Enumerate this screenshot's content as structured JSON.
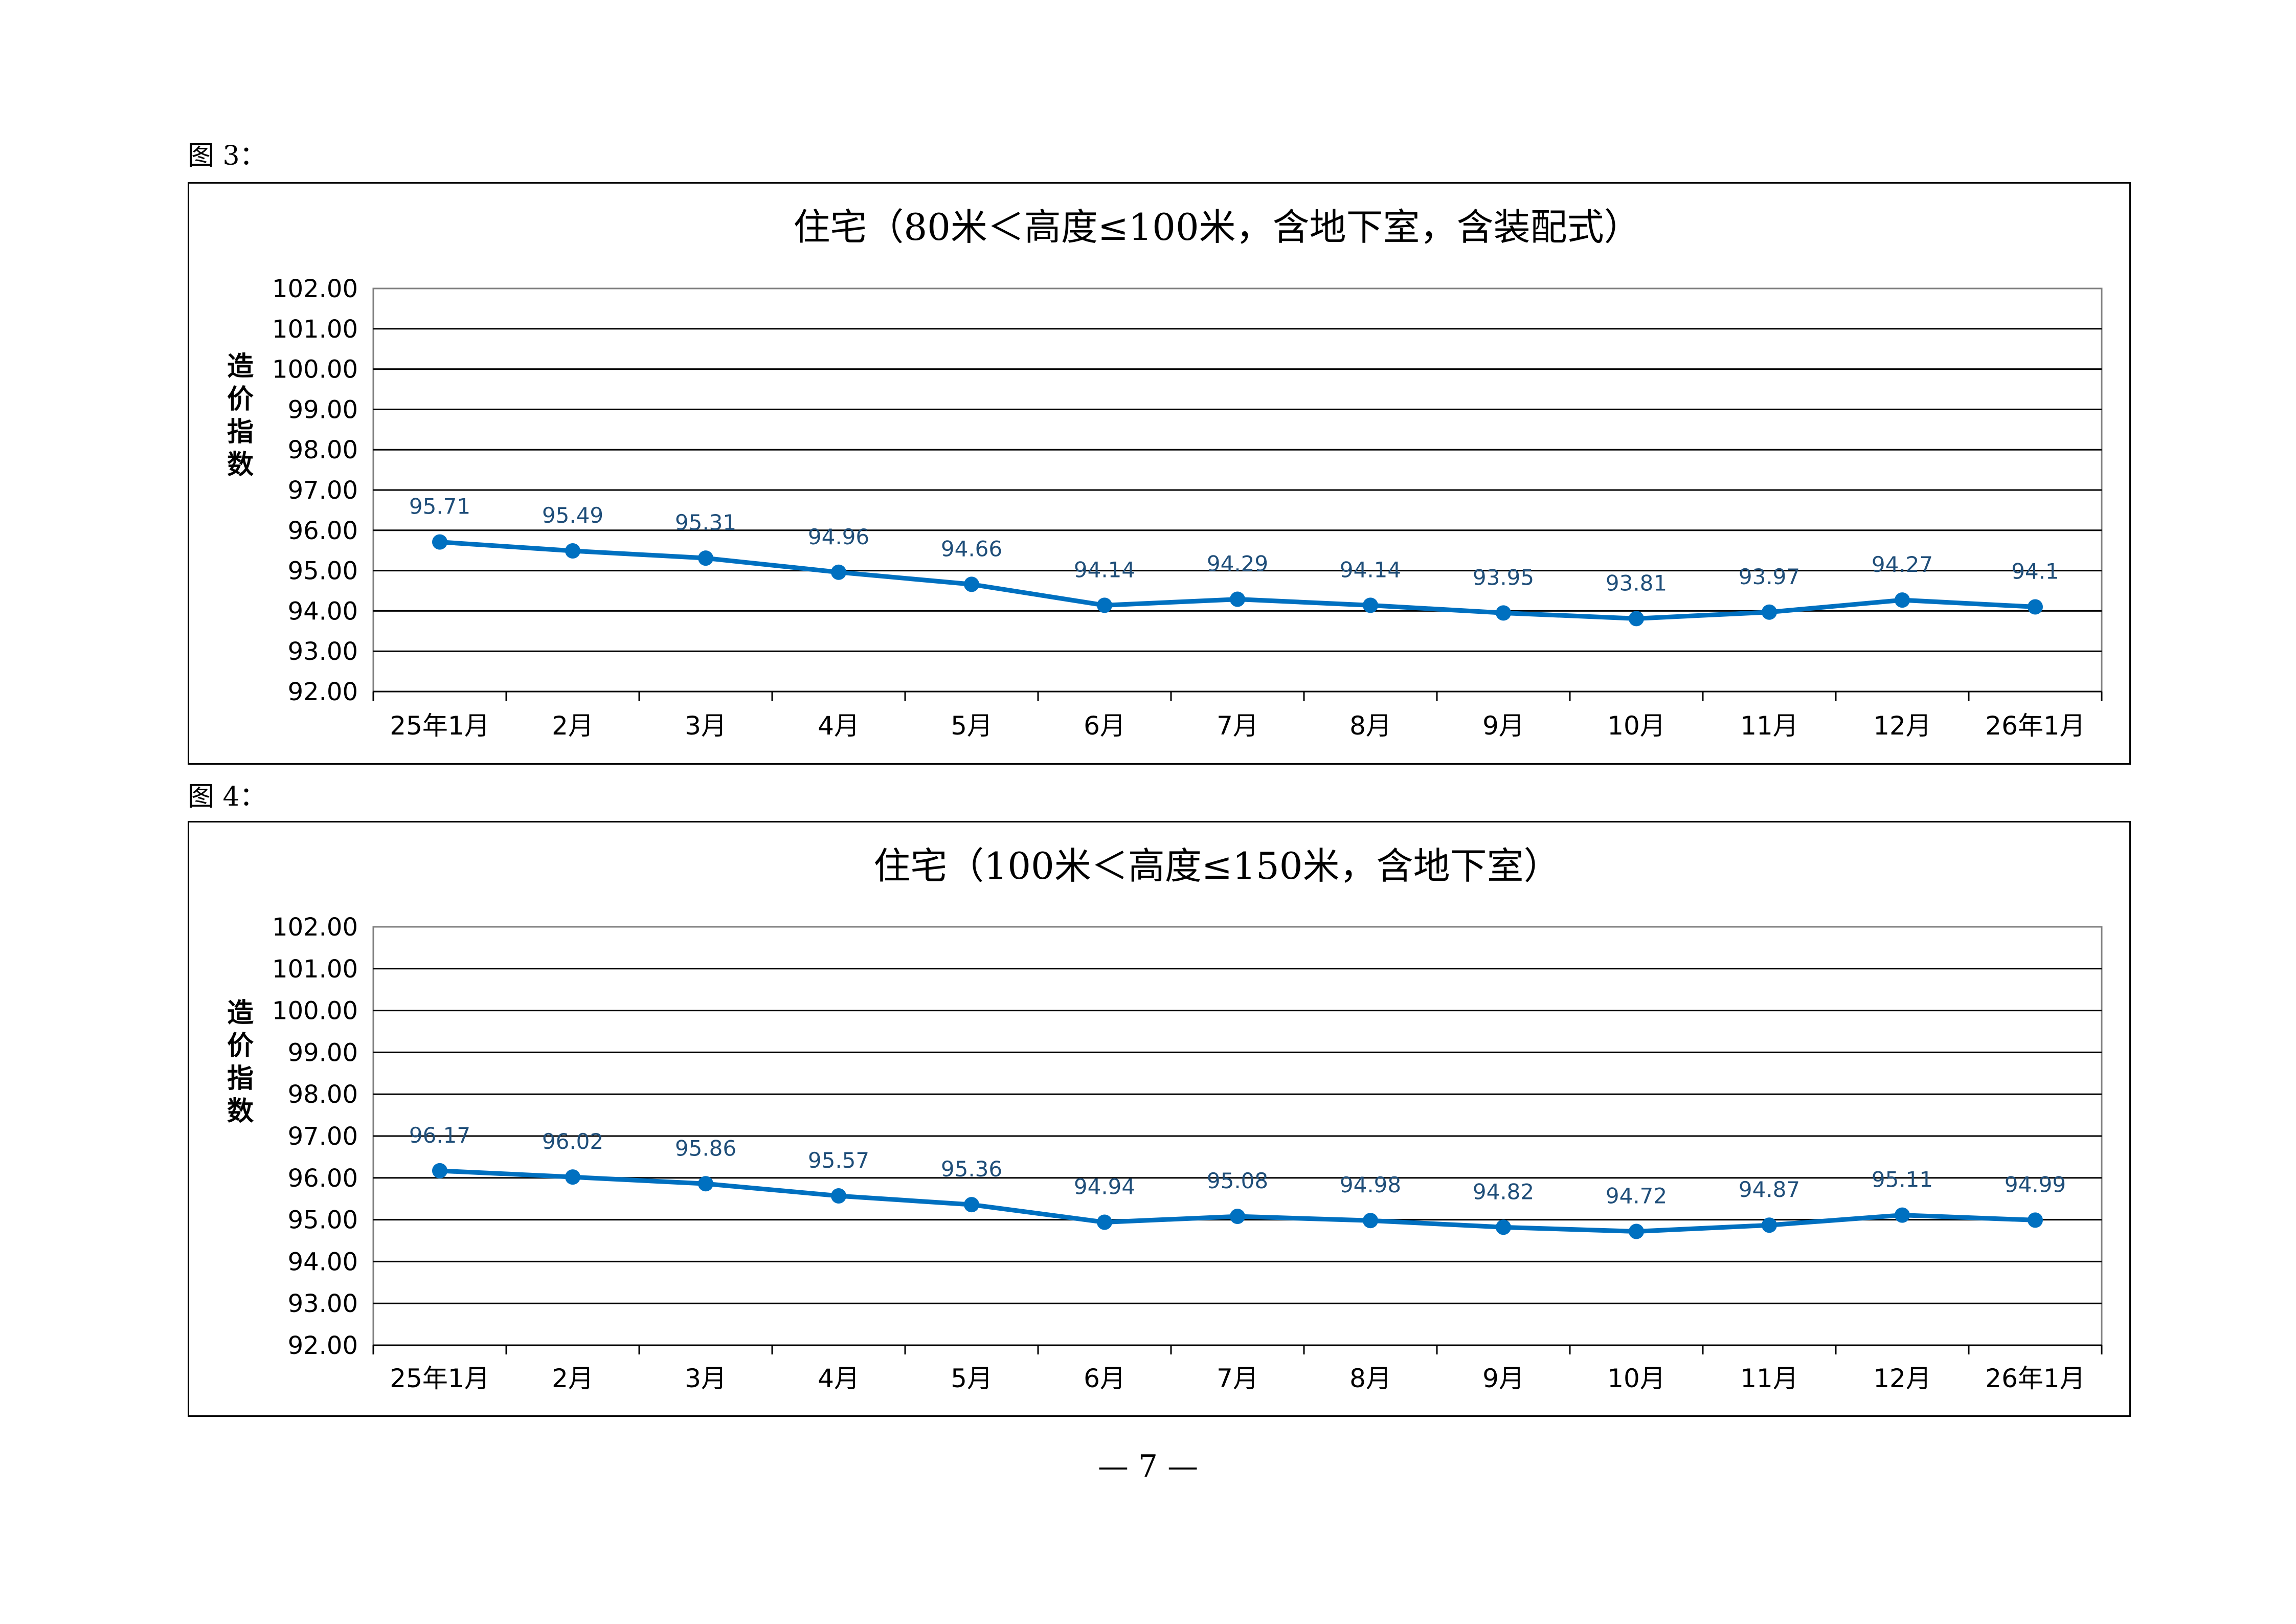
{
  "figures": [
    {
      "label": "图 3：",
      "chart_data": {
        "type": "line",
        "title": "住宅（80米＜高度≤100米，含地下室，含装配式）",
        "xlabel": "",
        "ylabel": "造价指数",
        "ylim": [
          92,
          102
        ],
        "yticks": [
          "92.00",
          "93.00",
          "94.00",
          "95.00",
          "96.00",
          "97.00",
          "98.00",
          "99.00",
          "100.00",
          "101.00",
          "102.00"
        ],
        "categories": [
          "25年1月",
          "2月",
          "3月",
          "4月",
          "5月",
          "6月",
          "7月",
          "8月",
          "9月",
          "10月",
          "11月",
          "12月",
          "26年1月"
        ],
        "values": [
          95.71,
          95.49,
          95.31,
          94.96,
          94.66,
          94.14,
          94.29,
          94.14,
          93.95,
          93.81,
          93.97,
          94.27,
          94.1
        ],
        "data_labels": [
          "95.71",
          "95.49",
          "95.31",
          "94.96",
          "94.66",
          "94.14",
          "94.29",
          "94.14",
          "93.95",
          "93.81",
          "93.97",
          "94.27",
          "94.1"
        ],
        "line_color": "#0070C0",
        "label_color": "#1F4E79",
        "grid": true,
        "legend": "none"
      }
    },
    {
      "label": "图 4：",
      "chart_data": {
        "type": "line",
        "title": "住宅（100米＜高度≤150米，含地下室）",
        "xlabel": "",
        "ylabel": "造价指数",
        "ylim": [
          92,
          102
        ],
        "yticks": [
          "92.00",
          "93.00",
          "94.00",
          "95.00",
          "96.00",
          "97.00",
          "98.00",
          "99.00",
          "100.00",
          "101.00",
          "102.00"
        ],
        "categories": [
          "25年1月",
          "2月",
          "3月",
          "4月",
          "5月",
          "6月",
          "7月",
          "8月",
          "9月",
          "10月",
          "11月",
          "12月",
          "26年1月"
        ],
        "values": [
          96.17,
          96.02,
          95.86,
          95.57,
          95.36,
          94.94,
          95.08,
          94.98,
          94.82,
          94.72,
          94.87,
          95.11,
          94.99
        ],
        "data_labels": [
          "96.17",
          "96.02",
          "95.86",
          "95.57",
          "95.36",
          "94.94",
          "95.08",
          "94.98",
          "94.82",
          "94.72",
          "94.87",
          "95.11",
          "94.99"
        ],
        "line_color": "#0070C0",
        "label_color": "#1F4E79",
        "grid": true,
        "legend": "none"
      }
    }
  ],
  "page_number": "— 7 —"
}
